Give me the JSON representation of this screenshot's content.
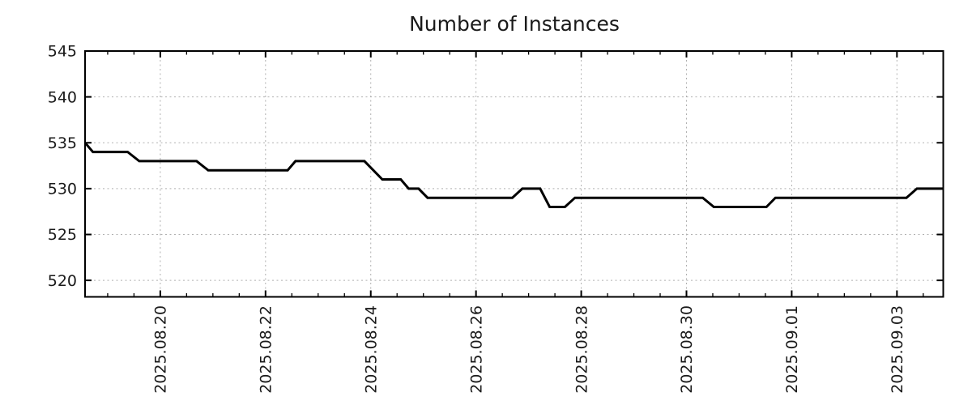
{
  "chart_data": {
    "type": "line",
    "title": "Number of Instances",
    "legend_position": "none",
    "grid": {
      "style": "dotted",
      "color": "#b0b0b0"
    },
    "x_axis": {
      "tick_labels": [
        "2025.08.20",
        "2025.08.22",
        "2025.08.24",
        "2025.08.26",
        "2025.08.28",
        "2025.08.30",
        "2025.09.01",
        "2025.09.03"
      ],
      "major_tick_positions_days": [
        0,
        2,
        4,
        6,
        8,
        10,
        12,
        14
      ],
      "minor_tick_interval_days": 0.5,
      "range_days": [
        -1.43,
        14.88
      ],
      "label_rotation_deg": -90
    },
    "y_axis": {
      "ticks": [
        520,
        525,
        530,
        535,
        540,
        545
      ],
      "range": [
        518.2,
        545
      ]
    },
    "series": [
      {
        "name": "instances",
        "color": "#000000",
        "points_day_value": [
          [
            -1.43,
            535
          ],
          [
            -1.28,
            534
          ],
          [
            -0.62,
            534
          ],
          [
            -0.4,
            533
          ],
          [
            0.69,
            533
          ],
          [
            0.91,
            532
          ],
          [
            2.42,
            532
          ],
          [
            2.57,
            533
          ],
          [
            3.88,
            533
          ],
          [
            4.22,
            531
          ],
          [
            4.57,
            531
          ],
          [
            4.72,
            530
          ],
          [
            4.91,
            530
          ],
          [
            5.08,
            529
          ],
          [
            6.69,
            529
          ],
          [
            6.88,
            530
          ],
          [
            7.22,
            530
          ],
          [
            7.4,
            528
          ],
          [
            7.69,
            528
          ],
          [
            7.88,
            529
          ],
          [
            10.31,
            529
          ],
          [
            10.52,
            528
          ],
          [
            11.52,
            528
          ],
          [
            11.69,
            529
          ],
          [
            14.18,
            529
          ],
          [
            14.38,
            530
          ],
          [
            14.88,
            530
          ]
        ]
      }
    ]
  },
  "style": {
    "line_color": "#000000",
    "grid_color": "#b0b0b0",
    "border_color": "#000000",
    "text_color": "#1a1a1a",
    "background": "#ffffff"
  }
}
